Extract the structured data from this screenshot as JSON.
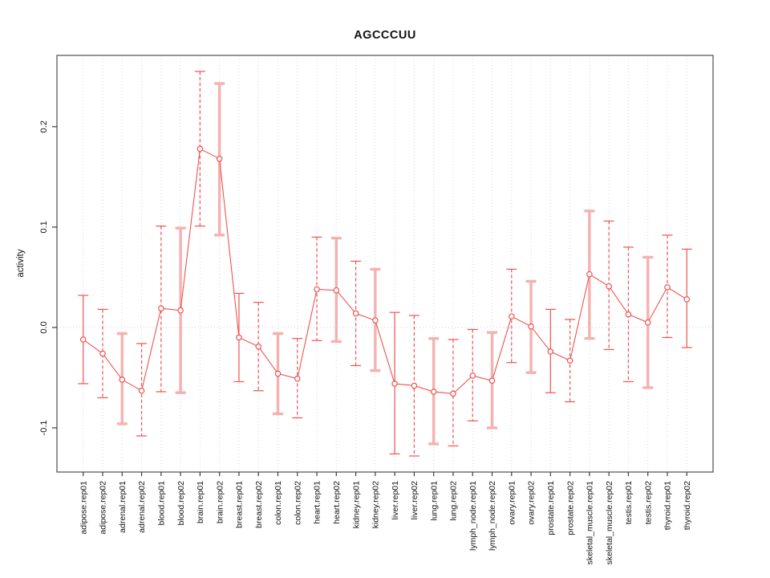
{
  "window": {
    "background": "#ffffff"
  },
  "colors": {
    "series_red": "#ef5350",
    "thick_bar_pink": "#f5b1af",
    "grid_gray": "#d6d6d6",
    "zero_line_gray": "#cfcfcf",
    "frame_gray": "#4d4d4d",
    "tick_black": "#3a3a3a",
    "text_black": "#111111",
    "point_fill": "#ffffff"
  },
  "chart_data": {
    "type": "scatter",
    "title": "AGCCCUU",
    "xlabel": "",
    "ylabel": "activity",
    "ylim": [
      -0.144,
      0.271
    ],
    "yticks": [
      -0.1,
      0.0,
      0.1,
      0.2
    ],
    "ytick_labels": [
      "-0.1",
      "0.0",
      "0.1",
      "0.2"
    ],
    "grid": "vertical-dotted-per-category",
    "zero_reference_line": "dotted",
    "legend": "none",
    "marker": "open-circle",
    "connecting_line": true,
    "categories": [
      "adipose.rep01",
      "adipose.rep02",
      "adrenal.rep01",
      "adrenal.rep02",
      "blood.rep01",
      "blood.rep02",
      "brain.rep01",
      "brain.rep02",
      "breast.rep01",
      "breast.rep02",
      "colon.rep01",
      "colon.rep02",
      "heart.rep01",
      "heart.rep02",
      "kidney.rep01",
      "kidney.rep02",
      "liver.rep01",
      "liver.rep02",
      "lung.rep01",
      "lung.rep02",
      "lymph_node.rep01",
      "lymph_node.rep02",
      "ovary.rep01",
      "ovary.rep02",
      "prostate.rep01",
      "prostate.rep02",
      "skeletal_muscle.rep01",
      "skeletal_muscle.rep02",
      "testis.rep01",
      "testis.rep02",
      "thyroid.rep01",
      "thyroid.rep02"
    ],
    "series": [
      {
        "name": "activity",
        "values": [
          -0.012,
          -0.026,
          -0.052,
          -0.063,
          0.019,
          0.017,
          0.178,
          0.168,
          -0.01,
          -0.019,
          -0.046,
          -0.051,
          0.038,
          0.037,
          0.014,
          0.007,
          -0.056,
          -0.058,
          -0.064,
          -0.066,
          -0.048,
          -0.053,
          0.011,
          0.001,
          -0.024,
          -0.033,
          0.053,
          0.041,
          0.013,
          0.005,
          0.04,
          0.028
        ],
        "ci_high": [
          0.032,
          0.018,
          -0.006,
          -0.016,
          0.101,
          0.099,
          0.255,
          0.243,
          0.034,
          0.025,
          -0.006,
          -0.011,
          0.09,
          0.089,
          0.066,
          0.058,
          0.015,
          0.012,
          -0.011,
          -0.012,
          -0.002,
          -0.005,
          0.058,
          0.046,
          0.018,
          0.008,
          0.116,
          0.106,
          0.08,
          0.07,
          0.092,
          0.078
        ],
        "ci_low": [
          -0.056,
          -0.07,
          -0.096,
          -0.108,
          -0.064,
          -0.065,
          0.101,
          0.092,
          -0.054,
          -0.063,
          -0.086,
          -0.09,
          -0.013,
          -0.014,
          -0.038,
          -0.043,
          -0.126,
          -0.128,
          -0.116,
          -0.118,
          -0.093,
          -0.1,
          -0.035,
          -0.045,
          -0.065,
          -0.074,
          -0.011,
          -0.022,
          -0.054,
          -0.06,
          -0.01,
          -0.02
        ],
        "bar_styles": [
          "solid",
          "dashed",
          "thick",
          "dashed",
          "dashed",
          "thick",
          "dashed",
          "thick",
          "solid",
          "dashed",
          "thick",
          "dashed",
          "dashed",
          "thick",
          "dashed",
          "thick",
          "solid",
          "dashed",
          "thick",
          "dashed",
          "dashed",
          "thick",
          "dashed",
          "thick",
          "solid",
          "dashed",
          "thick",
          "dashed",
          "dashed",
          "thick",
          "dashed",
          "solid"
        ]
      }
    ]
  }
}
